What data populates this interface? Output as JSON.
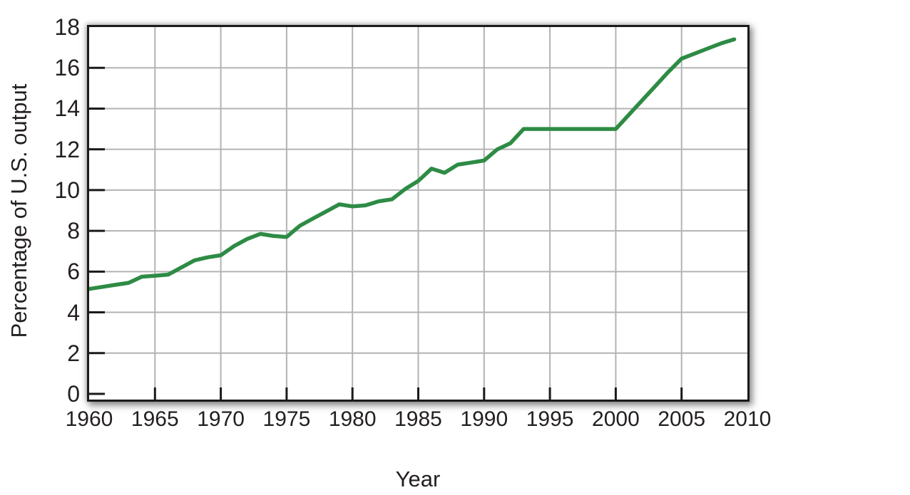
{
  "style": {
    "background": "#ffffff",
    "axis_color": "#1a1a1a",
    "grid_color": "#b3b3b3",
    "text_color": "#231f20",
    "line_color": "#2e8b45"
  },
  "chart_data": {
    "type": "line",
    "title": "",
    "xlabel": "Year",
    "ylabel": "Percentage of U.S. output",
    "xlim": [
      1960,
      2010
    ],
    "ylim": [
      0,
      18
    ],
    "xticks": [
      1960,
      1965,
      1970,
      1975,
      1980,
      1985,
      1990,
      1995,
      2000,
      2005,
      2010
    ],
    "yticks": [
      0,
      2,
      4,
      6,
      8,
      10,
      12,
      14,
      16,
      18
    ],
    "grid": true,
    "legend": "none",
    "series": [
      {
        "color": "#2e8b45",
        "x": [
          1960,
          1961,
          1962,
          1963,
          1964,
          1965,
          1966,
          1967,
          1968,
          1969,
          1970,
          1971,
          1972,
          1973,
          1974,
          1975,
          1976,
          1977,
          1978,
          1979,
          1980,
          1981,
          1982,
          1983,
          1984,
          1985,
          1986,
          1987,
          1988,
          1989,
          1990,
          1991,
          1992,
          1993,
          1994,
          1995,
          1996,
          1997,
          1998,
          1999,
          2000,
          2001,
          2002,
          2003,
          2004,
          2005,
          2006,
          2007,
          2008,
          2009
        ],
        "y": [
          5.15,
          5.25,
          5.35,
          5.45,
          5.75,
          5.8,
          5.85,
          6.2,
          6.55,
          6.7,
          6.8,
          7.25,
          7.6,
          7.85,
          7.75,
          7.7,
          8.25,
          8.6,
          8.95,
          9.3,
          9.2,
          9.25,
          9.45,
          9.55,
          10.05,
          10.45,
          11.05,
          10.85,
          11.25,
          11.35,
          11.45,
          12.0,
          12.3,
          13.0,
          13.0,
          13.0,
          13.0,
          13.0,
          13.0,
          13.0,
          13.0,
          13.7,
          14.4,
          15.1,
          15.8,
          16.45,
          16.7,
          16.95,
          17.2,
          17.4
        ]
      }
    ]
  }
}
